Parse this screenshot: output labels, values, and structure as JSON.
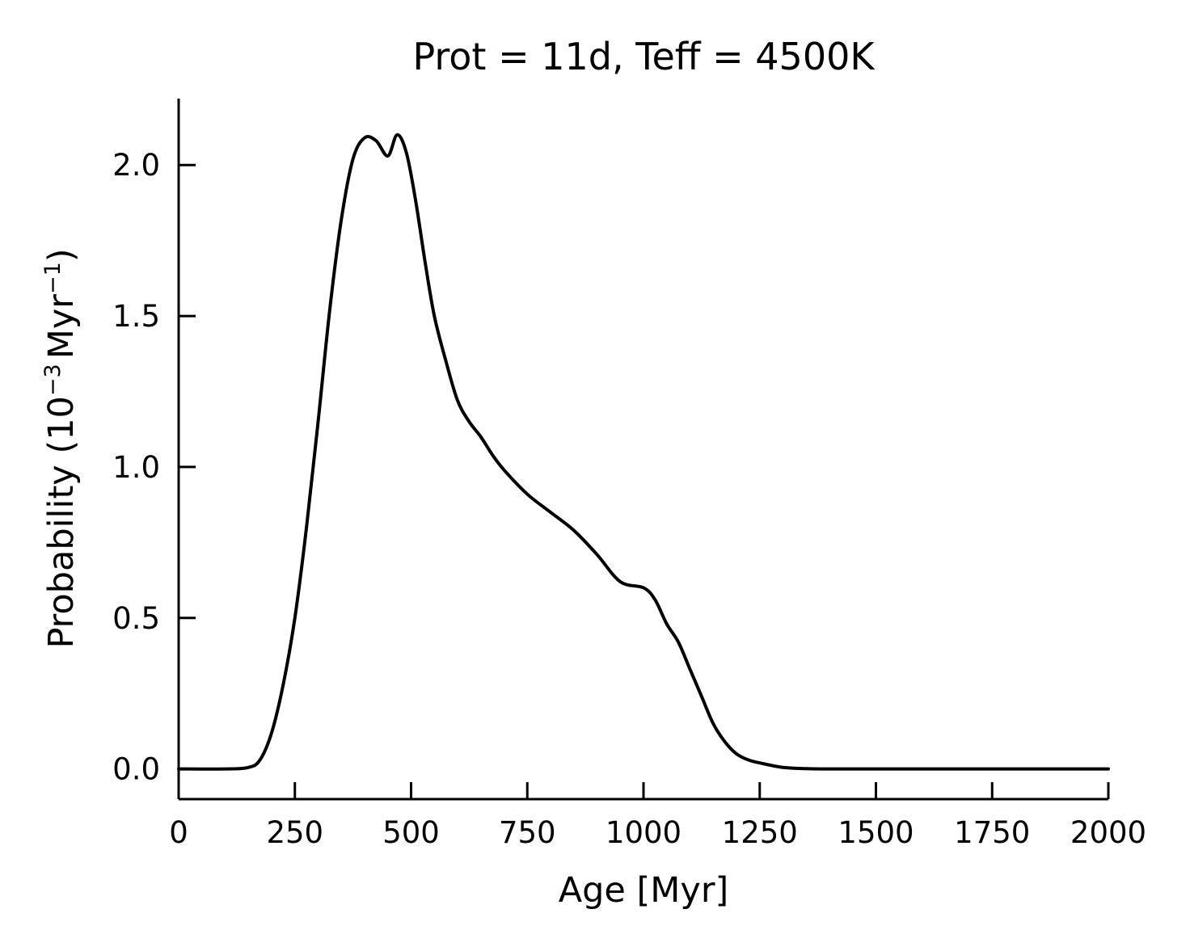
{
  "chart_data": {
    "type": "line",
    "title": "Prot = 11d, Teff = 4500K",
    "xlabel": "Age [Myr]",
    "ylabel": {
      "prefix": "Probability (10",
      "exp1": "−3",
      "middle": "Myr",
      "exp2": "−1",
      "suffix": ")"
    },
    "xlim": [
      0,
      2000
    ],
    "ylim": [
      -0.1,
      2.22
    ],
    "xticks": [
      0,
      250,
      500,
      750,
      1000,
      1250,
      1500,
      1750,
      2000
    ],
    "xtick_labels": [
      "0",
      "250",
      "500",
      "750",
      "1000",
      "1250",
      "1500",
      "1750",
      "2000"
    ],
    "yticks": [
      0.0,
      0.5,
      1.0,
      1.5,
      2.0
    ],
    "ytick_labels": [
      "0.0",
      "0.5",
      "1.0",
      "1.5",
      "2.0"
    ],
    "grid": false,
    "line_color": "#000000",
    "series": [
      {
        "x": [
          0,
          100,
          150,
          175,
          200,
          225,
          250,
          275,
          300,
          325,
          350,
          375,
          400,
          425,
          450,
          470,
          490,
          510,
          530,
          550,
          575,
          600,
          625,
          650,
          675,
          700,
          750,
          800,
          850,
          900,
          950,
          1000,
          1025,
          1050,
          1075,
          1100,
          1125,
          1150,
          1175,
          1200,
          1225,
          1250,
          1300,
          1350,
          1400,
          1500,
          1750,
          2000
        ],
        "y": [
          0.0,
          0.0,
          0.005,
          0.03,
          0.12,
          0.28,
          0.5,
          0.8,
          1.15,
          1.52,
          1.82,
          2.02,
          2.09,
          2.08,
          2.03,
          2.1,
          2.04,
          1.88,
          1.68,
          1.5,
          1.35,
          1.22,
          1.15,
          1.1,
          1.04,
          0.99,
          0.91,
          0.85,
          0.79,
          0.71,
          0.62,
          0.6,
          0.56,
          0.48,
          0.42,
          0.33,
          0.24,
          0.15,
          0.09,
          0.05,
          0.03,
          0.02,
          0.005,
          0.001,
          0.0,
          0.0,
          0.0,
          0.0
        ]
      }
    ]
  }
}
